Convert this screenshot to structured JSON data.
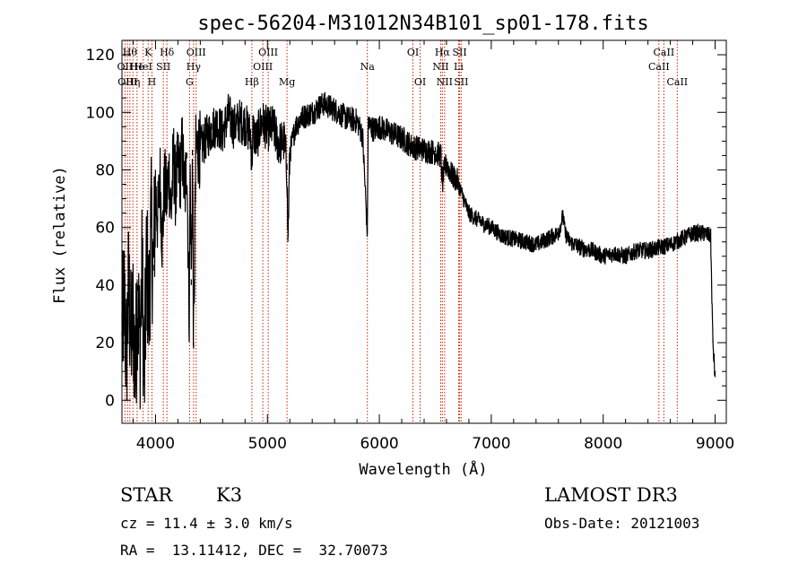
{
  "chart_data": {
    "type": "line",
    "title": "spec-56204-M31012N34B101_sp01-178.fits",
    "xlabel": "Wavelength (Å)",
    "ylabel": "Flux (relative)",
    "xlim": [
      3700,
      9100
    ],
    "ylim": [
      -8,
      125
    ],
    "xticks": [
      4000,
      5000,
      6000,
      7000,
      8000,
      9000
    ],
    "yticks": [
      0,
      20,
      40,
      60,
      80,
      100,
      120
    ],
    "grid": false,
    "series": [
      {
        "name": "flux",
        "x": [
          3700,
          3720,
          3740,
          3760,
          3780,
          3800,
          3820,
          3840,
          3860,
          3880,
          3900,
          3920,
          3940,
          3960,
          3980,
          4000,
          4020,
          4040,
          4060,
          4080,
          4100,
          4120,
          4140,
          4160,
          4180,
          4200,
          4220,
          4240,
          4260,
          4280,
          4300,
          4310,
          4320,
          4330,
          4340,
          4360,
          4380,
          4400,
          4450,
          4500,
          4550,
          4600,
          4650,
          4700,
          4750,
          4800,
          4850,
          4861,
          4870,
          4900,
          4950,
          5000,
          5050,
          5100,
          5150,
          5175,
          5183,
          5200,
          5250,
          5300,
          5400,
          5500,
          5600,
          5700,
          5800,
          5850,
          5893,
          5900,
          5950,
          6000,
          6100,
          6200,
          6300,
          6400,
          6500,
          6550,
          6563,
          6580,
          6600,
          6650,
          6700,
          6750,
          6800,
          6900,
          7000,
          7100,
          7200,
          7300,
          7400,
          7500,
          7600,
          7640,
          7660,
          7700,
          7800,
          7900,
          8000,
          8100,
          8200,
          8300,
          8400,
          8500,
          8600,
          8700,
          8800,
          8900,
          8960,
          8980,
          9000
        ],
        "values": [
          22,
          35,
          15,
          40,
          20,
          30,
          10,
          38,
          18,
          45,
          5,
          50,
          30,
          60,
          45,
          72,
          62,
          78,
          55,
          75,
          70,
          80,
          65,
          85,
          72,
          82,
          78,
          88,
          70,
          84,
          30,
          80,
          40,
          85,
          18,
          86,
          88,
          87,
          91,
          94,
          96,
          93,
          99,
          95,
          97,
          96,
          92,
          82,
          94,
          90,
          97,
          94,
          95,
          89,
          90,
          80,
          55,
          86,
          95,
          98,
          100,
          103,
          101,
          98,
          97,
          92,
          58,
          96,
          94,
          95,
          93,
          91,
          88,
          87,
          86,
          85,
          75,
          80,
          82,
          78,
          76,
          70,
          65,
          62,
          60,
          57,
          56,
          55,
          54,
          56,
          58,
          64,
          58,
          55,
          53,
          52,
          50,
          51,
          50,
          52,
          52,
          53,
          54,
          56,
          58,
          58,
          57,
          20,
          8
        ]
      }
    ],
    "lines": [
      {
        "wave": 3727,
        "labels": [
          {
            "text": "OII",
            "row": 2
          }
        ]
      },
      {
        "wave": 3750,
        "labels": [
          {
            "text": "OIII",
            "row": 3
          }
        ]
      },
      {
        "wave": 3771,
        "labels": [
          {
            "text": "Hθ",
            "row": 1
          }
        ]
      },
      {
        "wave": 3798,
        "labels": [
          {
            "text": "Hη",
            "row": 3
          }
        ]
      },
      {
        "wave": 3835,
        "labels": [
          {
            "text": "He",
            "row": 2
          }
        ]
      },
      {
        "wave": 3889,
        "labels": [
          {
            "text": "HeI",
            "row": 2
          }
        ]
      },
      {
        "wave": 3934,
        "labels": [
          {
            "text": "K",
            "row": 1
          }
        ]
      },
      {
        "wave": 3968,
        "labels": [
          {
            "text": "H",
            "row": 3
          }
        ]
      },
      {
        "wave": 4070,
        "labels": [
          {
            "text": "SII",
            "row": 2
          }
        ]
      },
      {
        "wave": 4102,
        "labels": [
          {
            "text": "Hδ",
            "row": 1
          }
        ]
      },
      {
        "wave": 4304,
        "labels": [
          {
            "text": "G",
            "row": 3
          }
        ]
      },
      {
        "wave": 4340,
        "labels": [
          {
            "text": "Hγ",
            "row": 2
          }
        ]
      },
      {
        "wave": 4363,
        "labels": [
          {
            "text": "OIII",
            "row": 1
          }
        ]
      },
      {
        "wave": 4861,
        "labels": [
          {
            "text": "Hβ",
            "row": 3
          }
        ]
      },
      {
        "wave": 4959,
        "labels": [
          {
            "text": "OIII",
            "row": 2
          }
        ]
      },
      {
        "wave": 5007,
        "labels": [
          {
            "text": "OIII",
            "row": 1
          }
        ]
      },
      {
        "wave": 5175,
        "labels": [
          {
            "text": "Mg",
            "row": 3
          }
        ]
      },
      {
        "wave": 5893,
        "labels": [
          {
            "text": "Na",
            "row": 2
          }
        ]
      },
      {
        "wave": 6300,
        "labels": [
          {
            "text": "OI",
            "row": 1
          }
        ]
      },
      {
        "wave": 6364,
        "labels": [
          {
            "text": "OI",
            "row": 3
          }
        ]
      },
      {
        "wave": 6548,
        "labels": [
          {
            "text": "NII",
            "row": 2
          }
        ]
      },
      {
        "wave": 6563,
        "labels": [
          {
            "text": "Hα",
            "row": 1
          }
        ]
      },
      {
        "wave": 6583,
        "labels": [
          {
            "text": "NII",
            "row": 3
          }
        ]
      },
      {
        "wave": 6708,
        "labels": [
          {
            "text": "Li",
            "row": 2
          }
        ]
      },
      {
        "wave": 6717,
        "labels": [
          {
            "text": "SII",
            "row": 1
          }
        ]
      },
      {
        "wave": 6731,
        "labels": [
          {
            "text": "SII",
            "row": 3
          }
        ]
      },
      {
        "wave": 8498,
        "labels": [
          {
            "text": "CaII",
            "row": 2
          }
        ]
      },
      {
        "wave": 8542,
        "labels": [
          {
            "text": "CaII",
            "row": 1
          }
        ]
      },
      {
        "wave": 8662,
        "labels": [
          {
            "text": "CaII",
            "row": 3
          }
        ]
      }
    ],
    "colors": {
      "spectrum": "#000000",
      "line_markers": "#cc2200",
      "axes": "#000000"
    }
  },
  "info": {
    "class_label": "STAR",
    "subclass": "K3",
    "survey": "LAMOST DR3",
    "cz": "cz = 11.4 ± 3.0 km/s",
    "obs_date": "Obs-Date: 20121003",
    "coords": "RA =  13.11412, DEC =  32.70073"
  }
}
